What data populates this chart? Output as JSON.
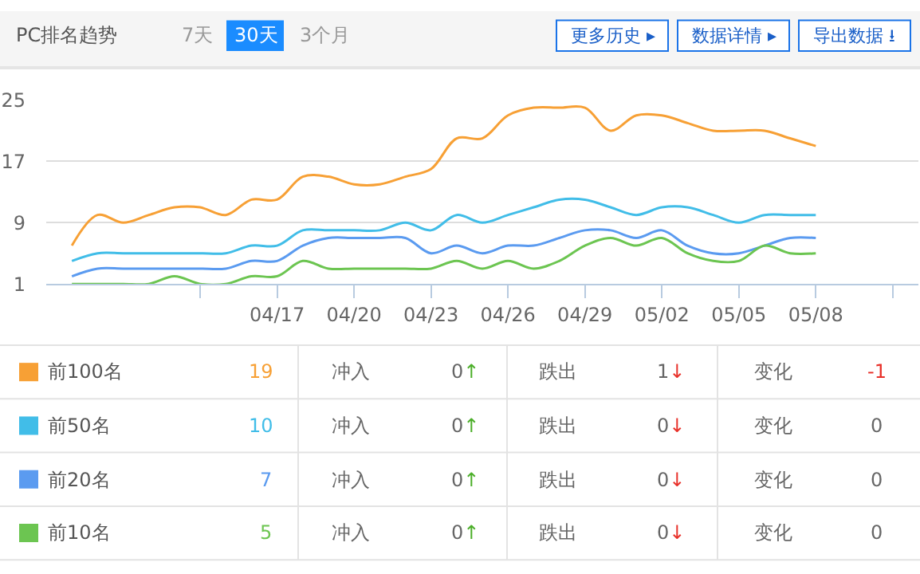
{
  "chart_data": {
    "type": "line",
    "title": "PC排名趋势",
    "x": [
      "--04-09",
      "--04-10",
      "--04-11",
      "--04-12",
      "--04-13",
      "--04-14",
      "--04-15",
      "--04-16",
      "--04-17",
      "--04-18",
      "--04-19",
      "--04-20",
      "--04-21",
      "--04-22",
      "--04-23",
      "--04-24",
      "--04-25",
      "--04-26",
      "--04-27",
      "--04-28",
      "--04-29",
      "--04-30",
      "--05-01",
      "--05-02",
      "--05-03",
      "--05-04",
      "--05-05",
      "--05-06",
      "--05-07",
      "--05-08"
    ],
    "series": [
      {
        "name": "前100名",
        "color": "#f7a035",
        "values": [
          6,
          10,
          9,
          10,
          11,
          11,
          10,
          12,
          12,
          15,
          15,
          14,
          14,
          15,
          16,
          20,
          20,
          23,
          24,
          24,
          24,
          21,
          23,
          23,
          22,
          21,
          21,
          21,
          20,
          19
        ]
      },
      {
        "name": "前50名",
        "color": "#41bde8",
        "values": [
          4,
          5,
          5,
          5,
          5,
          5,
          5,
          6,
          6,
          8,
          8,
          8,
          8,
          9,
          8,
          10,
          9,
          10,
          11,
          12,
          12,
          11,
          10,
          11,
          11,
          10,
          9,
          10,
          10,
          10
        ]
      },
      {
        "name": "前20名",
        "color": "#5b9bf0",
        "values": [
          2,
          3,
          3,
          3,
          3,
          3,
          3,
          4,
          4,
          6,
          7,
          7,
          7,
          7,
          5,
          6,
          5,
          6,
          6,
          7,
          8,
          8,
          7,
          8,
          6,
          5,
          5,
          6,
          7,
          7
        ]
      },
      {
        "name": "前10名",
        "color": "#6cc551",
        "values": [
          1,
          1,
          1,
          1,
          2,
          1,
          1,
          2,
          2,
          4,
          3,
          3,
          3,
          3,
          3,
          4,
          3,
          4,
          3,
          4,
          6,
          7,
          6,
          7,
          5,
          4,
          4,
          6,
          5,
          5
        ]
      }
    ],
    "xlim": [
      "--04-08",
      "--05-12"
    ],
    "xticks": [
      {
        "value": "--04-14",
        "label": null
      },
      {
        "value": "--04-17",
        "label": "04/17"
      },
      {
        "value": "--04-20",
        "label": "04/20"
      },
      {
        "value": "--04-23",
        "label": "04/23"
      },
      {
        "value": "--04-26",
        "label": "04/26"
      },
      {
        "value": "--04-29",
        "label": "04/29"
      },
      {
        "value": "--05-02",
        "label": "05/02"
      },
      {
        "value": "--05-05",
        "label": "05/05"
      },
      {
        "value": "--05-08",
        "label": "05/08"
      },
      {
        "value": "--05-11",
        "label": null
      }
    ],
    "ylim": [
      1,
      25
    ],
    "yticks": [
      1,
      9,
      17,
      25
    ],
    "grid": "y",
    "legend": "bottom",
    "marker": "none",
    "line_style": "solid",
    "annotations": [
      "7天",
      "30天",
      "3个月",
      "更多历史 ▸",
      "数据详情 ▸",
      "导出数据 ⭳",
      "19",
      "冲入",
      "0↑",
      "跌出",
      "1↓",
      "变化",
      "-1",
      "10",
      "冲入",
      "0↑",
      "跌出",
      "0↓",
      "变化",
      "0",
      "7",
      "冲入",
      "0↑",
      "跌出",
      "0↓",
      "变化",
      "0",
      "5",
      "冲入",
      "0↑",
      "跌出",
      "0↓",
      "变化",
      "0"
    ]
  }
}
